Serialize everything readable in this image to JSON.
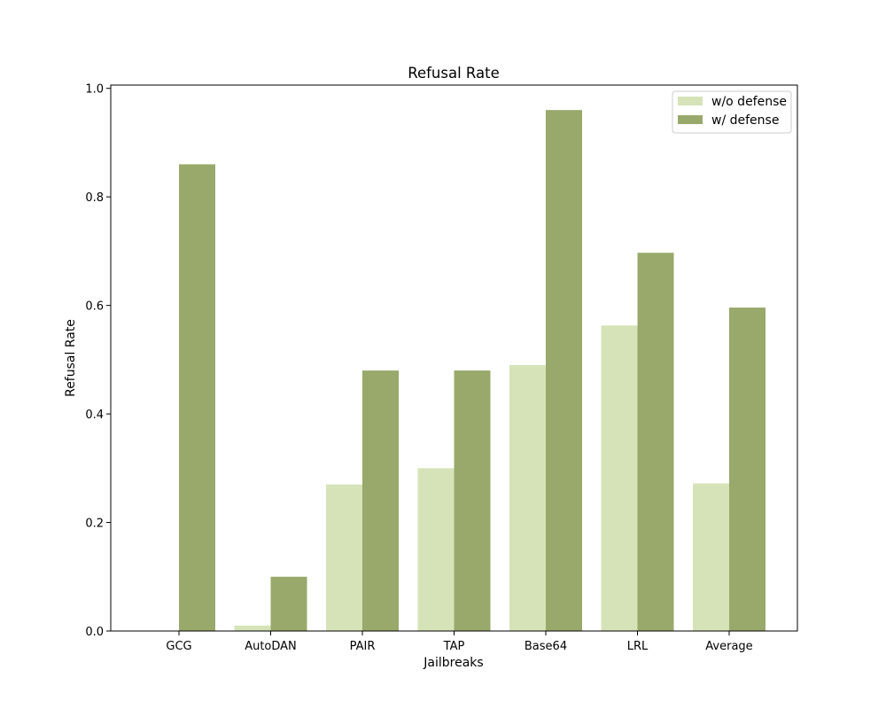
{
  "chart_data": {
    "type": "bar",
    "title": "Refusal Rate",
    "xlabel": "Jailbreaks",
    "ylabel": "Refusal Rate",
    "categories": [
      "GCG",
      "AutoDAN",
      "PAIR",
      "TAP",
      "Base64",
      "LRL",
      "Average"
    ],
    "series": [
      {
        "name": "w/o defense",
        "color": "#d6e3b8",
        "values": [
          0.0,
          0.01,
          0.27,
          0.3,
          0.49,
          0.563,
          0.272
        ]
      },
      {
        "name": "w/ defense",
        "color": "#98a96b",
        "values": [
          0.86,
          0.1,
          0.48,
          0.48,
          0.96,
          0.697,
          0.596
        ]
      }
    ],
    "ylim": [
      0,
      1.0
    ],
    "yticks": [
      "0.0",
      "0.2",
      "0.4",
      "0.6",
      "0.8",
      "1.0"
    ],
    "grid": false,
    "legend_position": "top-right"
  }
}
